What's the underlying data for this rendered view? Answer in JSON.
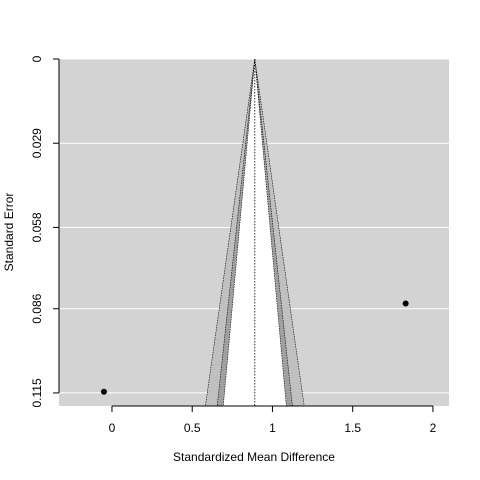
{
  "chart_data": {
    "type": "scatter",
    "subtype": "contour-enhanced funnel plot",
    "title": "",
    "xlabel": "Standardized Mean Difference",
    "ylabel": "Standard Error",
    "x_ticks": [
      "0",
      "0.5",
      "1",
      "1.5",
      "2"
    ],
    "x_tick_values": [
      0,
      0.5,
      1,
      1.5,
      2
    ],
    "y_ticks": [
      "0",
      "0.029",
      "0.058",
      "0.086",
      "0.115"
    ],
    "y_tick_values": [
      0,
      0.029,
      0.058,
      0.086,
      0.115
    ],
    "xlim": [
      -0.33,
      2.1
    ],
    "ylim": [
      0.1195,
      0
    ],
    "y_reversed": true,
    "grid": "horizontal",
    "center_estimate": 0.89,
    "contour_z": [
      1.6449,
      1.96,
      2.5758
    ],
    "points": [
      {
        "x": -0.05,
        "y": 0.1146
      },
      {
        "x": 1.83,
        "y": 0.0842
      }
    ],
    "colors": {
      "panel_background": "#d3d3d3",
      "grid": "#ffffff",
      "inner_region": "#ffffff",
      "middle_region": "#a0a0a0",
      "outer_region": "#c0c0c0",
      "points": "#000000"
    }
  }
}
